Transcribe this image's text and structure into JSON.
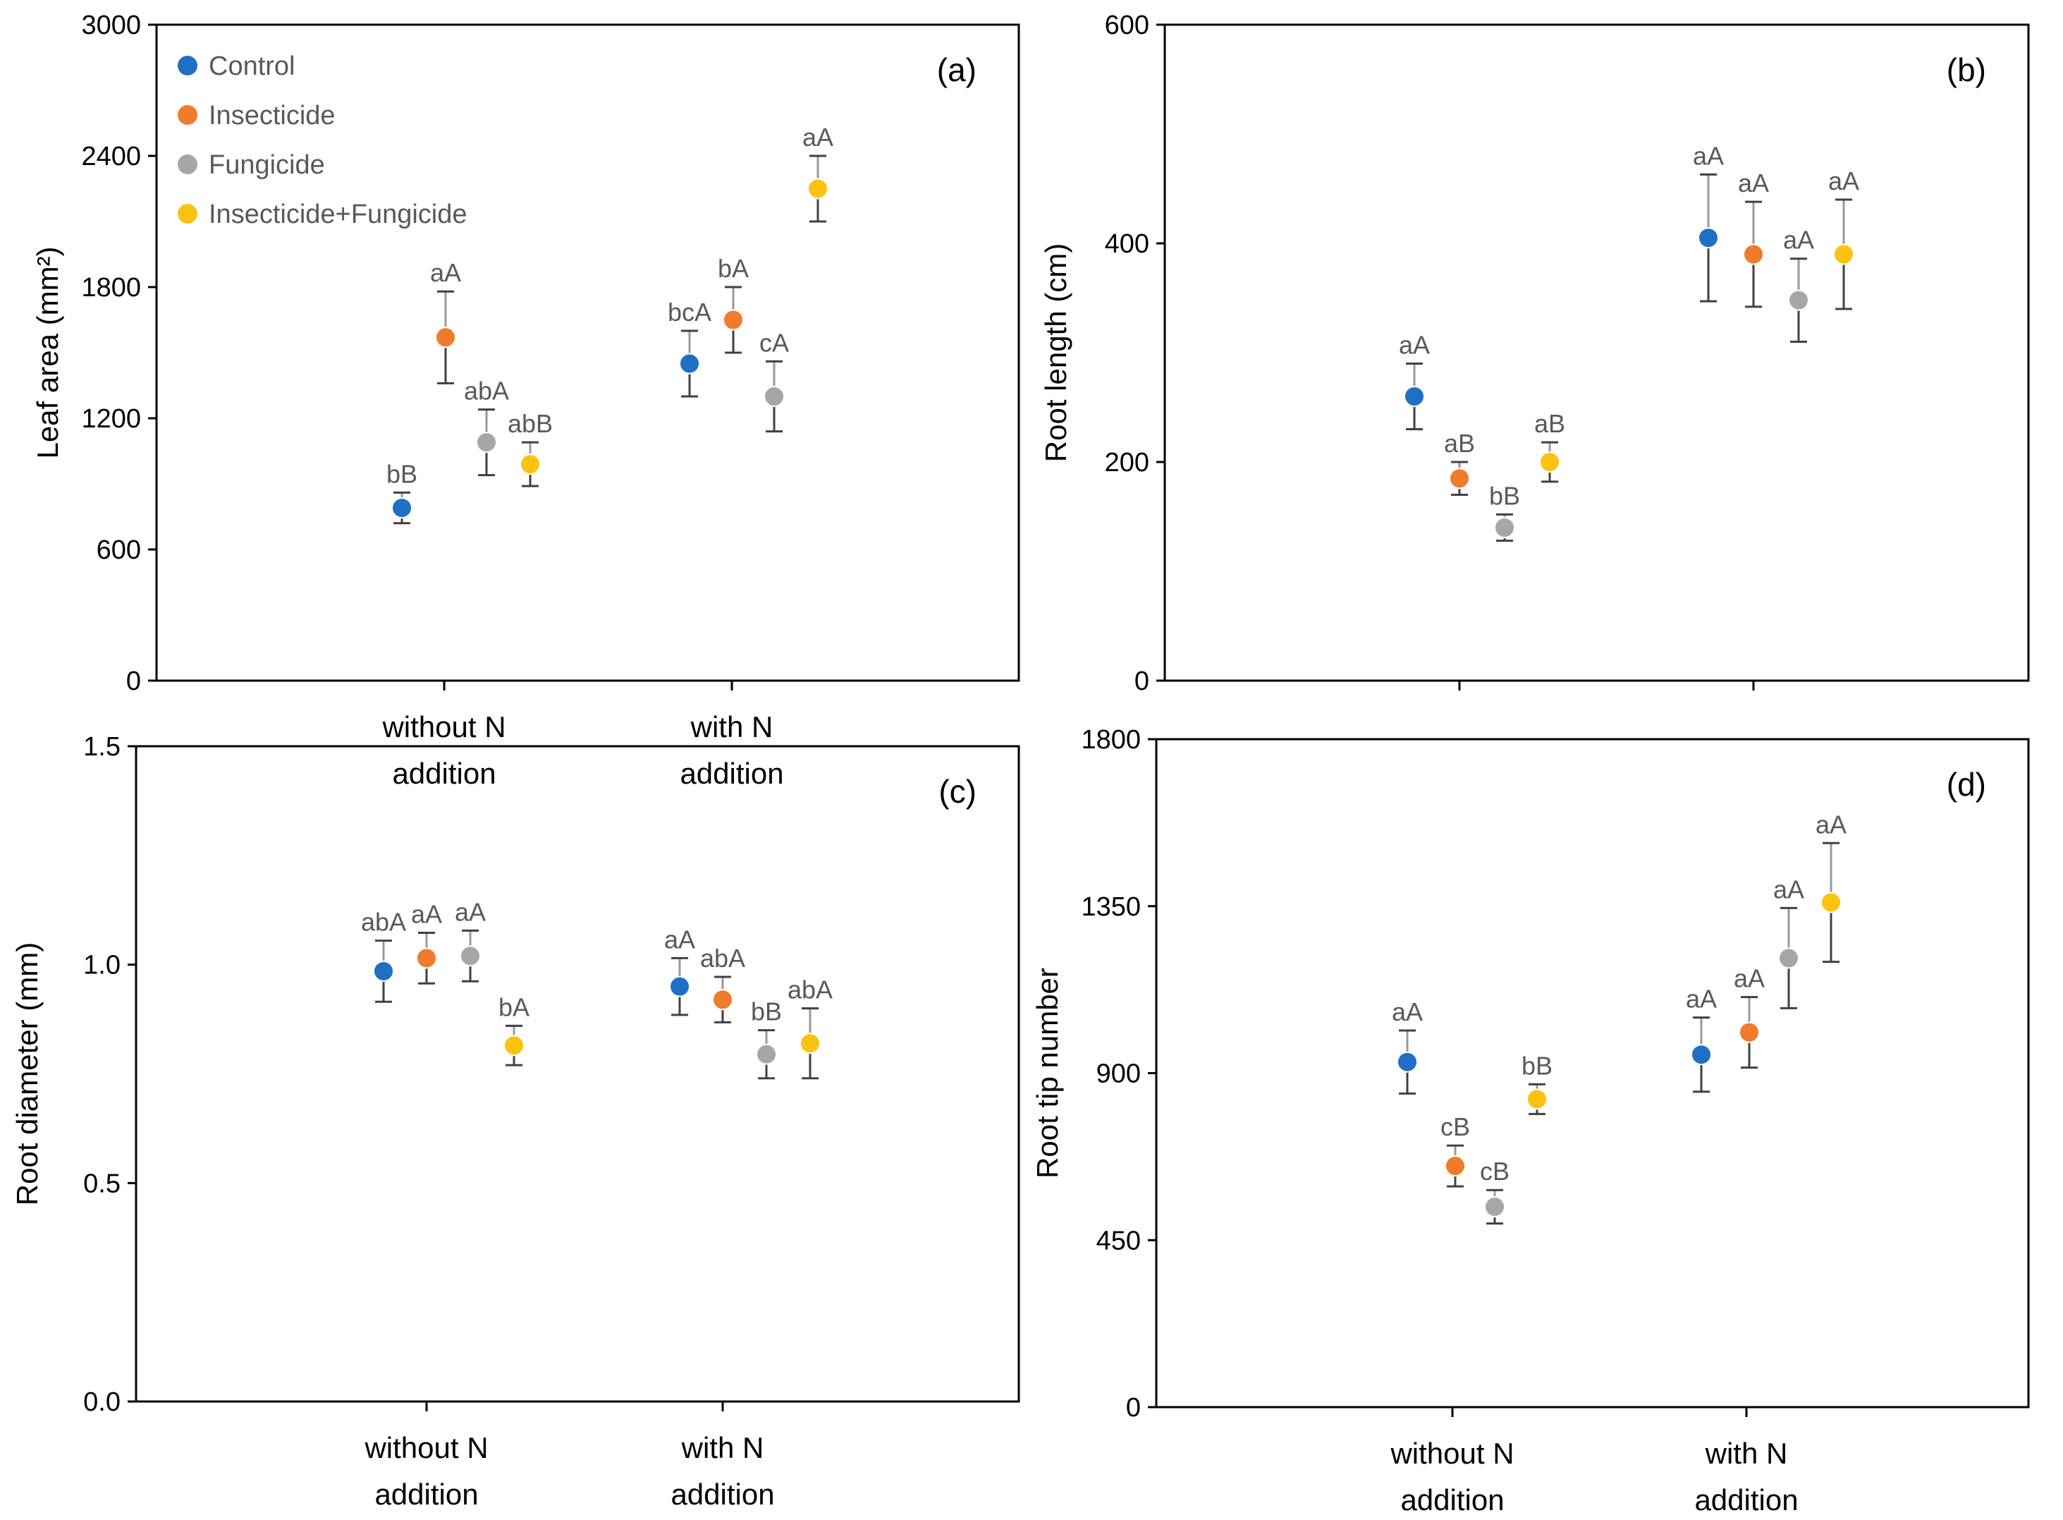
{
  "colors": {
    "Control": "#1f6fc5",
    "Insecticide": "#f07b2a",
    "Fungicide": "#a6a6a6",
    "Insecticide+Fungicide": "#fdc10f",
    "error_bar": "#404040",
    "axis": "#000000"
  },
  "chart_data": [
    {
      "id": "a",
      "type": "scatter",
      "panel_label": "(a)",
      "ylabel": "Leaf area (mm²)",
      "ylim": [
        0,
        3000
      ],
      "yticks": [
        "0",
        "600",
        "1200",
        "1800",
        "2400",
        "3000"
      ],
      "categories": [
        "without N\naddition",
        "with N\naddition"
      ],
      "legend": [
        "Control",
        "Insecticide",
        "Fungicide",
        "Insecticide+Fungicide"
      ],
      "series": [
        {
          "name": "Control",
          "values": [
            790,
            1450
          ],
          "err": [
            70,
            150
          ],
          "labels": [
            "bB",
            "bcA"
          ]
        },
        {
          "name": "Insecticide",
          "values": [
            1570,
            1650
          ],
          "err": [
            210,
            150
          ],
          "labels": [
            "aA",
            "bA"
          ]
        },
        {
          "name": "Fungicide",
          "values": [
            1090,
            1300
          ],
          "err": [
            150,
            160
          ],
          "labels": [
            "abA",
            "cA"
          ]
        },
        {
          "name": "Insecticide+Fungicide",
          "values": [
            990,
            2250
          ],
          "err": [
            100,
            150
          ],
          "labels": [
            "abB",
            "aA"
          ]
        }
      ]
    },
    {
      "id": "b",
      "type": "scatter",
      "panel_label": "(b)",
      "ylabel": "Root length (cm)",
      "ylim": [
        0,
        600
      ],
      "yticks": [
        "0",
        "200",
        "400",
        "600"
      ],
      "categories": [
        "",
        ""
      ],
      "series": [
        {
          "name": "Control",
          "values": [
            260,
            405
          ],
          "err": [
            30,
            58
          ],
          "labels": [
            "aA",
            "aA"
          ]
        },
        {
          "name": "Insecticide",
          "values": [
            185,
            390
          ],
          "err": [
            15,
            48
          ],
          "labels": [
            "aB",
            "aA"
          ]
        },
        {
          "name": "Fungicide",
          "values": [
            140,
            348
          ],
          "err": [
            12,
            38
          ],
          "labels": [
            "bB",
            "aA"
          ]
        },
        {
          "name": "Insecticide+Fungicide",
          "values": [
            200,
            390
          ],
          "err": [
            18,
            50
          ],
          "labels": [
            "aB",
            "aA"
          ]
        }
      ]
    },
    {
      "id": "c",
      "type": "scatter",
      "panel_label": "(c)",
      "ylabel": "Root diameter (mm)",
      "ylim": [
        0,
        1.5
      ],
      "yticks": [
        "0.0",
        "0.5",
        "1.0",
        "1.5"
      ],
      "categories": [
        "without N\naddition",
        "with N\naddition"
      ],
      "series": [
        {
          "name": "Control",
          "values": [
            0.985,
            0.95
          ],
          "err": [
            0.07,
            0.065
          ],
          "labels": [
            "abA",
            "aA"
          ]
        },
        {
          "name": "Insecticide",
          "values": [
            1.015,
            0.92
          ],
          "err": [
            0.058,
            0.052
          ],
          "labels": [
            "aA",
            "abA"
          ]
        },
        {
          "name": "Fungicide",
          "values": [
            1.02,
            0.795
          ],
          "err": [
            0.058,
            0.055
          ],
          "labels": [
            "aA",
            "bB"
          ]
        },
        {
          "name": "Insecticide+Fungicide",
          "values": [
            0.815,
            0.82
          ],
          "err": [
            0.045,
            0.08
          ],
          "labels": [
            "bA",
            "abA"
          ]
        }
      ]
    },
    {
      "id": "d",
      "type": "scatter",
      "panel_label": "(d)",
      "ylabel": "Root tip number",
      "ylim": [
        0,
        1800
      ],
      "yticks": [
        "0",
        "450",
        "900",
        "1350",
        "1800"
      ],
      "categories": [
        "without N\naddition",
        "with N\naddition"
      ],
      "series": [
        {
          "name": "Control",
          "values": [
            930,
            950
          ],
          "err": [
            85,
            100
          ],
          "labels": [
            "aA",
            "aA"
          ]
        },
        {
          "name": "Insecticide",
          "values": [
            650,
            1010
          ],
          "err": [
            55,
            95
          ],
          "labels": [
            "cB",
            "aA"
          ]
        },
        {
          "name": "Fungicide",
          "values": [
            540,
            1210
          ],
          "err": [
            45,
            135
          ],
          "labels": [
            "cB",
            "aA"
          ]
        },
        {
          "name": "Insecticide+Fungicide",
          "values": [
            830,
            1360
          ],
          "err": [
            40,
            160
          ],
          "labels": [
            "bB",
            "aA"
          ]
        }
      ]
    }
  ]
}
